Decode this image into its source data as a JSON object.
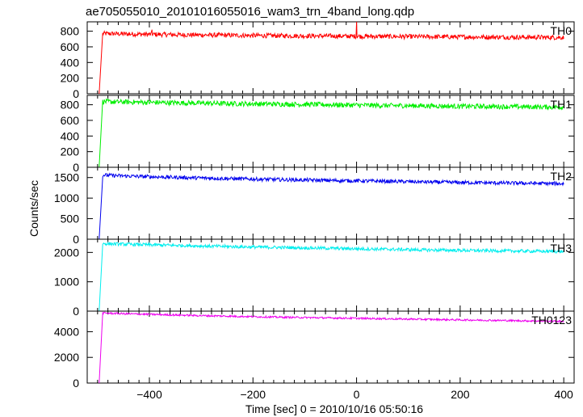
{
  "chart_data": {
    "type": "line",
    "title": "ae705055010_20101016055016_wam3_trn_4band_long.qdp",
    "xlabel": "Time [sec] 0 = 2010/10/16 05:50:16",
    "ylabel": "Counts/sec",
    "xlim": [
      -520,
      420
    ],
    "x_ticks": [
      -400,
      -200,
      0,
      200,
      400
    ],
    "grid": false,
    "panels": [
      {
        "name": "TH0",
        "color": "#ff0000",
        "ylim": [
          0,
          920
        ],
        "y_ticks": [
          0,
          200,
          400,
          600,
          800
        ],
        "start_time": -497,
        "x": [
          -497,
          -490,
          -450,
          -400,
          -350,
          -300,
          -250,
          -200,
          -150,
          -100,
          -50,
          0,
          50,
          100,
          150,
          200,
          250,
          300,
          350,
          400
        ],
        "values": [
          0,
          770,
          765,
          760,
          755,
          752,
          748,
          745,
          742,
          740,
          738,
          735,
          733,
          731,
          729,
          727,
          725,
          724,
          722,
          720
        ],
        "noise": 30,
        "spikes": [
          {
            "x": 0,
            "y": 930
          },
          {
            "x": -395,
            "y": 820
          }
        ]
      },
      {
        "name": "TH1",
        "color": "#00ee00",
        "ylim": [
          0,
          920
        ],
        "y_ticks": [
          0,
          200,
          400,
          600,
          800
        ],
        "start_time": -497,
        "x": [
          -497,
          -490,
          -450,
          -400,
          -350,
          -300,
          -250,
          -200,
          -150,
          -100,
          -50,
          0,
          50,
          100,
          150,
          200,
          250,
          300,
          350,
          400
        ],
        "values": [
          0,
          840,
          835,
          830,
          825,
          820,
          815,
          812,
          808,
          805,
          800,
          795,
          790,
          788,
          785,
          780,
          778,
          775,
          772,
          770
        ],
        "noise": 32,
        "spikes": []
      },
      {
        "name": "TH2",
        "color": "#0000ee",
        "ylim": [
          0,
          1750
        ],
        "y_ticks": [
          0,
          500,
          1000,
          1500
        ],
        "start_time": -497,
        "x": [
          -497,
          -490,
          -450,
          -400,
          -350,
          -300,
          -250,
          -200,
          -150,
          -100,
          -50,
          0,
          50,
          100,
          150,
          200,
          250,
          300,
          350,
          400
        ],
        "values": [
          0,
          1560,
          1540,
          1520,
          1505,
          1490,
          1475,
          1462,
          1450,
          1440,
          1430,
          1420,
          1410,
          1400,
          1390,
          1380,
          1372,
          1365,
          1358,
          1350
        ],
        "noise": 45,
        "spikes": []
      },
      {
        "name": "TH3",
        "color": "#00eeee",
        "ylim": [
          0,
          2450
        ],
        "y_ticks": [
          0,
          1000,
          2000
        ],
        "start_time": -497,
        "x": [
          -497,
          -490,
          -450,
          -400,
          -350,
          -300,
          -250,
          -200,
          -150,
          -100,
          -50,
          0,
          50,
          100,
          150,
          200,
          250,
          300,
          350,
          400
        ],
        "values": [
          0,
          2300,
          2280,
          2260,
          2240,
          2220,
          2200,
          2185,
          2170,
          2155,
          2140,
          2125,
          2110,
          2095,
          2080,
          2070,
          2060,
          2050,
          2040,
          2030
        ],
        "noise": 55,
        "spikes": []
      },
      {
        "name": "TH0123",
        "color": "#ee00ee",
        "ylim": [
          0,
          5600
        ],
        "y_ticks": [
          0,
          2000,
          4000
        ],
        "start_time": -497,
        "x": [
          -497,
          -490,
          -450,
          -400,
          -350,
          -300,
          -250,
          -200,
          -150,
          -100,
          -50,
          0,
          50,
          100,
          150,
          200,
          250,
          300,
          350,
          400
        ],
        "values": [
          0,
          5450,
          5400,
          5350,
          5300,
          5250,
          5210,
          5170,
          5130,
          5100,
          5070,
          5040,
          5010,
          4980,
          4950,
          4920,
          4890,
          4860,
          4830,
          4800
        ],
        "noise": 70,
        "spikes": []
      }
    ]
  }
}
